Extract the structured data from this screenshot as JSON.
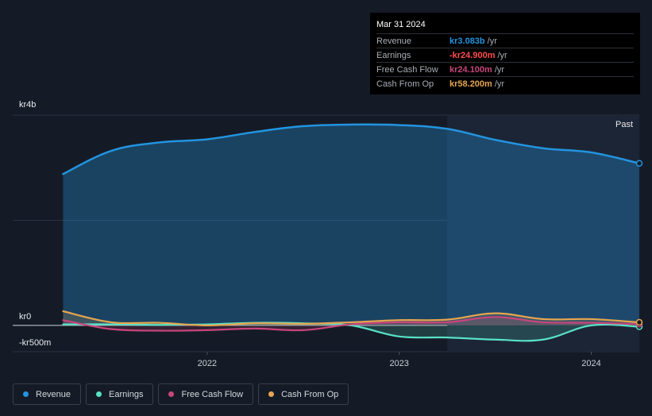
{
  "chart_data": {
    "type": "area",
    "x": [
      2021.25,
      2021.5,
      2021.75,
      2022.0,
      2022.25,
      2022.5,
      2022.75,
      2023.0,
      2023.25,
      2023.5,
      2023.75,
      2024.0,
      2024.25
    ],
    "series": [
      {
        "name": "Revenue",
        "color": "#2394df",
        "values": [
          2.88,
          3.32,
          3.48,
          3.54,
          3.68,
          3.79,
          3.82,
          3.81,
          3.74,
          3.53,
          3.37,
          3.29,
          3.083
        ]
      },
      {
        "name": "Earnings",
        "color": "#58e2c6",
        "values": [
          0.02,
          0.02,
          0.01,
          0.02,
          0.05,
          0.04,
          0.0,
          -0.21,
          -0.23,
          -0.27,
          -0.27,
          0.0,
          -0.0249
        ]
      },
      {
        "name": "Free Cash Flow",
        "color": "#c8457c",
        "values": [
          0.1,
          -0.07,
          -0.1,
          -0.09,
          -0.06,
          -0.09,
          0.02,
          0.06,
          0.06,
          0.16,
          0.06,
          0.05,
          0.0241
        ]
      },
      {
        "name": "Cash From Op",
        "color": "#e6a550",
        "values": [
          0.27,
          0.06,
          0.05,
          0.0,
          0.04,
          0.03,
          0.06,
          0.1,
          0.11,
          0.23,
          0.12,
          0.12,
          0.0582
        ]
      }
    ],
    "ylim": [
      -0.5,
      4.0
    ],
    "y_ticks": [
      {
        "value": 4.0,
        "label": "kr4b"
      },
      {
        "value": 0.0,
        "label": "kr0"
      },
      {
        "value": -0.5,
        "label": "-kr500m"
      }
    ],
    "x_ticks": [
      {
        "value": 2022.0,
        "label": "2022"
      },
      {
        "value": 2023.0,
        "label": "2023"
      },
      {
        "value": 2024.0,
        "label": "2024"
      }
    ],
    "past_label": "Past",
    "past_from": 2023.25,
    "xlim": [
      2021.12,
      2024.25
    ]
  },
  "tooltip": {
    "date": "Mar 31 2024",
    "rows": [
      {
        "label": "Revenue",
        "value": "kr3.083b",
        "unit": "/yr",
        "color": "#2394df"
      },
      {
        "label": "Earnings",
        "value": "-kr24.900m",
        "unit": "/yr",
        "color": "#ff4d4f"
      },
      {
        "label": "Free Cash Flow",
        "value": "kr24.100m",
        "unit": "/yr",
        "color": "#c8457c"
      },
      {
        "label": "Cash From Op",
        "value": "kr58.200m",
        "unit": "/yr",
        "color": "#e6a550"
      }
    ]
  },
  "legend": [
    {
      "label": "Revenue",
      "color": "#2394df"
    },
    {
      "label": "Earnings",
      "color": "#58e2c6"
    },
    {
      "label": "Free Cash Flow",
      "color": "#c8457c"
    },
    {
      "label": "Cash From Op",
      "color": "#e6a550"
    }
  ]
}
